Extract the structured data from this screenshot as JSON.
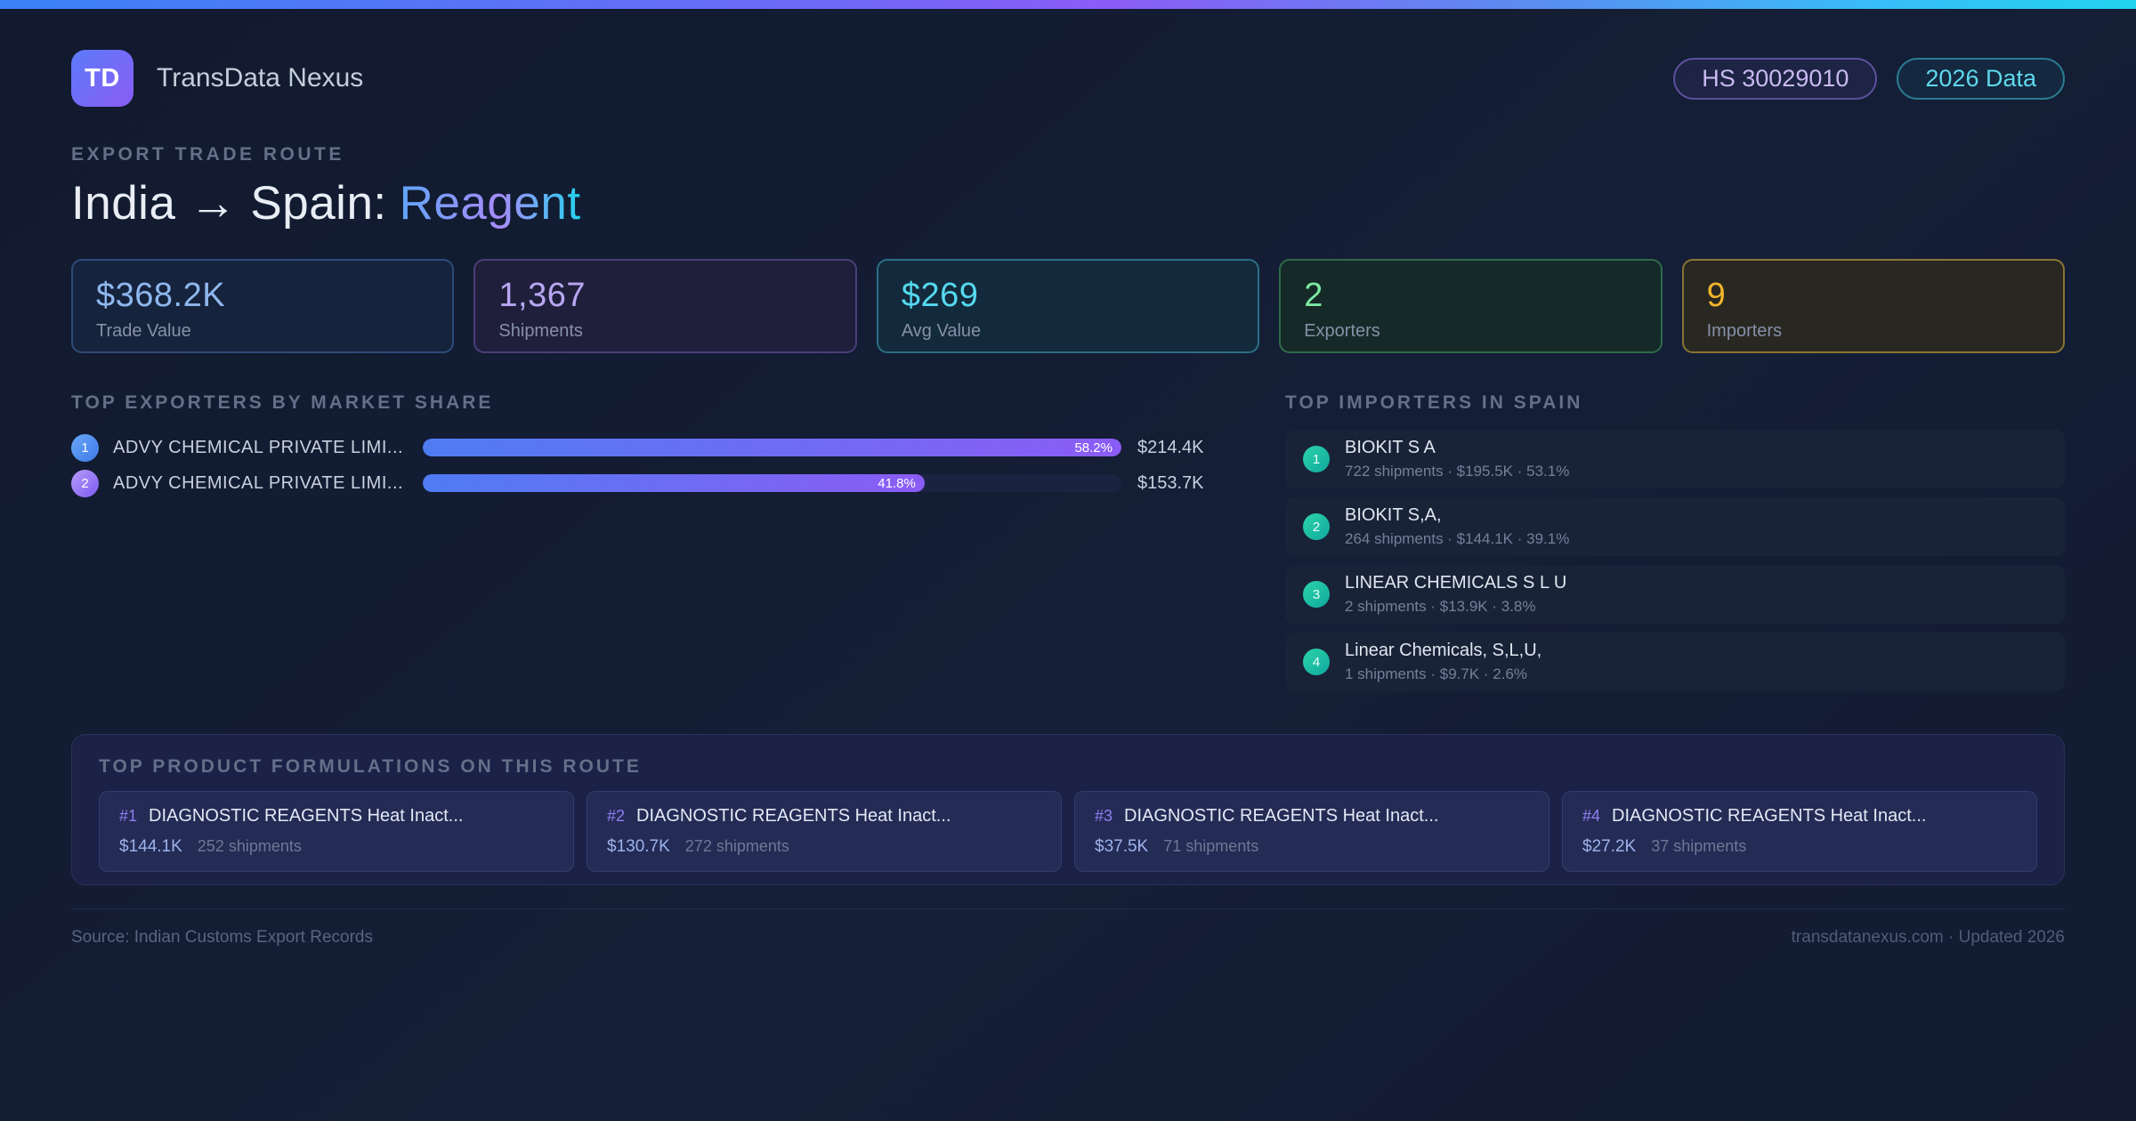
{
  "colors": {
    "accent_blue": "#3b82f6",
    "accent_purple": "#8b5cf6",
    "accent_cyan": "#22d3ee"
  },
  "header": {
    "logo_text": "TD",
    "app_name": "TransData Nexus",
    "hs_badge": "HS 30029010",
    "year_badge": "2026 Data"
  },
  "title": {
    "eyebrow": "EXPORT TRADE ROUTE",
    "route": "India → Spain:",
    "product": "Reagent"
  },
  "stats": [
    {
      "value": "$368.2K",
      "label": "Trade Value",
      "color": "#8fb8ef",
      "border": "#2e4a78",
      "bg": "#16233c"
    },
    {
      "value": "1,367",
      "label": "Shipments",
      "color": "#b9a7f2",
      "border": "#4a3f78",
      "bg": "#1f1f3c"
    },
    {
      "value": "$269",
      "label": "Avg Value",
      "color": "#55d9f0",
      "border": "#2a6f86",
      "bg": "#132a3c"
    },
    {
      "value": "2",
      "label": "Exporters",
      "color": "#7ce8a3",
      "border": "#2e6b4a",
      "bg": "#152a28"
    },
    {
      "value": "9",
      "label": "Importers",
      "color": "#f0b42c",
      "border": "#8a7434",
      "bg": "#282722"
    }
  ],
  "exporters": {
    "heading": "TOP EXPORTERS BY MARKET SHARE",
    "items": [
      {
        "rank": "1",
        "name": "ADVY CHEMICAL PRIVATE LIMI...",
        "pct": "58.2%",
        "pct_value": 58.2,
        "value": "$214.4K"
      },
      {
        "rank": "2",
        "name": "ADVY CHEMICAL PRIVATE LIMI...",
        "pct": "41.8%",
        "pct_value": 41.8,
        "value": "$153.7K"
      }
    ]
  },
  "importers": {
    "heading": "TOP IMPORTERS IN SPAIN",
    "items": [
      {
        "rank": "1",
        "name": "BIOKIT S A",
        "meta": "722 shipments · $195.5K · 53.1%"
      },
      {
        "rank": "2",
        "name": "BIOKIT S,A,",
        "meta": "264 shipments · $144.1K · 39.1%"
      },
      {
        "rank": "3",
        "name": "LINEAR CHEMICALS S L U",
        "meta": "2 shipments · $13.9K · 3.8%"
      },
      {
        "rank": "4",
        "name": "Linear Chemicals, S,L,U,",
        "meta": "1 shipments · $9.7K · 2.6%"
      }
    ]
  },
  "formulations": {
    "heading": "TOP PRODUCT FORMULATIONS ON THIS ROUTE",
    "items": [
      {
        "rank": "#1",
        "name": "DIAGNOSTIC REAGENTS Heat Inact...",
        "value": "$144.1K",
        "shipments": "252 shipments"
      },
      {
        "rank": "#2",
        "name": "DIAGNOSTIC REAGENTS Heat Inact...",
        "value": "$130.7K",
        "shipments": "272 shipments"
      },
      {
        "rank": "#3",
        "name": "DIAGNOSTIC REAGENTS Heat Inact...",
        "value": "$37.5K",
        "shipments": "71 shipments"
      },
      {
        "rank": "#4",
        "name": "DIAGNOSTIC REAGENTS Heat Inact...",
        "value": "$27.2K",
        "shipments": "37 shipments"
      }
    ]
  },
  "footer": {
    "source": "Source: Indian Customs Export Records",
    "site": "transdatanexus.com · Updated 2026"
  }
}
